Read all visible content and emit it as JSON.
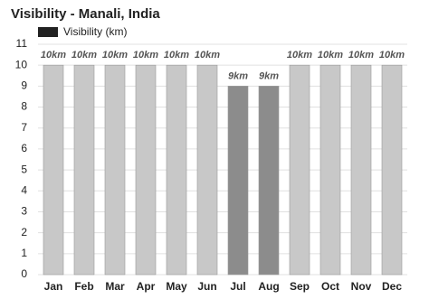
{
  "chart_data": {
    "type": "bar",
    "title": "Visibility - Manali, India",
    "categories": [
      "Jan",
      "Feb",
      "Mar",
      "Apr",
      "May",
      "Jun",
      "Jul",
      "Aug",
      "Sep",
      "Oct",
      "Nov",
      "Dec"
    ],
    "series": [
      {
        "name": "Visibility (km)",
        "color": "#222222",
        "values": [
          10,
          10,
          10,
          10,
          10,
          10,
          9,
          9,
          10,
          10,
          10,
          10
        ],
        "value_labels": [
          "10km",
          "10km",
          "10km",
          "10km",
          "10km",
          "10km",
          "9km",
          "9km",
          "10km",
          "10km",
          "10km",
          "10km"
        ],
        "bar_colors": [
          "#c8c8c8",
          "#c8c8c8",
          "#c8c8c8",
          "#c8c8c8",
          "#c8c8c8",
          "#c8c8c8",
          "#8c8c8c",
          "#8c8c8c",
          "#c8c8c8",
          "#c8c8c8",
          "#c8c8c8",
          "#c8c8c8"
        ]
      }
    ],
    "ylim": [
      0,
      11
    ],
    "yticks": [
      0,
      1,
      2,
      3,
      4,
      5,
      6,
      7,
      8,
      9,
      10,
      11
    ],
    "grid": true
  }
}
